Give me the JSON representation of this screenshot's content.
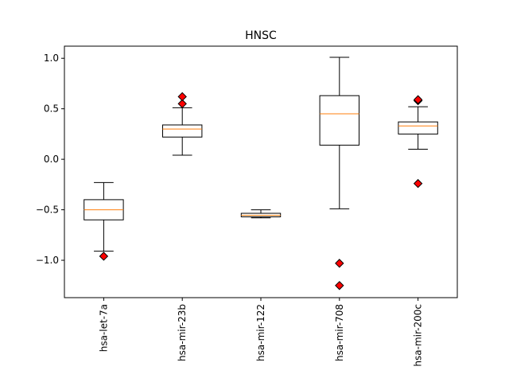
{
  "chart_data": {
    "type": "boxplot",
    "title": "HNSC",
    "xlabel": "",
    "ylabel": "",
    "ylim": [
      -1.37,
      1.12
    ],
    "yticks": [
      -1.0,
      -0.5,
      0.0,
      0.5,
      1.0
    ],
    "ytick_labels": [
      "−1.0",
      "−0.5",
      "0.0",
      "0.5",
      "1.0"
    ],
    "grid": false,
    "colors": {
      "box": "#000000",
      "median": "#ff7f0e",
      "flier_fill": "#ff0000",
      "flier_edge": "#000000"
    },
    "boxes": [
      {
        "label": "hsa-let-7a",
        "whisker_low": -0.91,
        "q1": -0.6,
        "median": -0.5,
        "q3": -0.4,
        "whisker_high": -0.23,
        "fliers": [
          -0.96
        ]
      },
      {
        "label": "hsa-mir-23b",
        "whisker_low": 0.04,
        "q1": 0.22,
        "median": 0.3,
        "q3": 0.34,
        "whisker_high": 0.51,
        "fliers": [
          0.55,
          0.62
        ]
      },
      {
        "label": "hsa-mir-122",
        "whisker_low": -0.58,
        "q1": -0.57,
        "median": -0.555,
        "q3": -0.535,
        "whisker_high": -0.5,
        "fliers": []
      },
      {
        "label": "hsa-mir-708",
        "whisker_low": -0.49,
        "q1": 0.14,
        "median": 0.45,
        "q3": 0.63,
        "whisker_high": 1.01,
        "fliers": [
          -1.03,
          -1.25
        ]
      },
      {
        "label": "hsa-mir-200c",
        "whisker_low": 0.1,
        "q1": 0.25,
        "median": 0.33,
        "q3": 0.37,
        "whisker_high": 0.52,
        "fliers": [
          0.58,
          0.59,
          -0.24
        ]
      }
    ]
  }
}
